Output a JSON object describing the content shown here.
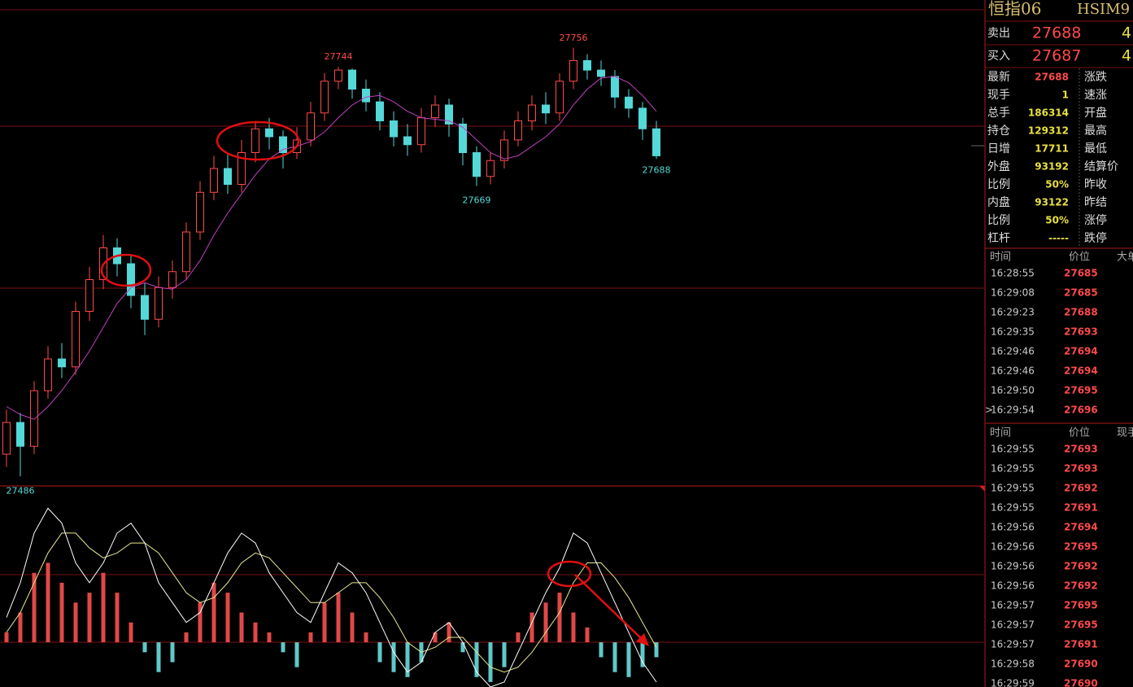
{
  "chart_data": [
    {
      "type": "candlestick",
      "open": [
        27500,
        27520,
        27505,
        27540,
        27560,
        27555,
        27590,
        27610,
        27630,
        27620,
        27600,
        27585,
        27605,
        27615,
        27640,
        27665,
        27680,
        27670,
        27690,
        27705,
        27700,
        27690,
        27698,
        27715,
        27735,
        27742,
        27730,
        27722,
        27710,
        27700,
        27695,
        27712,
        27720,
        27708,
        27690,
        27675,
        27685,
        27698,
        27710,
        27720,
        27715,
        27735,
        27748,
        27742,
        27738,
        27725,
        27718,
        27705
      ],
      "high": [
        27528,
        27526,
        27546,
        27568,
        27570,
        27596,
        27618,
        27638,
        27636,
        27626,
        27608,
        27612,
        27622,
        27646,
        27672,
        27688,
        27690,
        27698,
        27710,
        27712,
        27704,
        27706,
        27722,
        27740,
        27744,
        27743,
        27736,
        27728,
        27716,
        27708,
        27718,
        27726,
        27724,
        27712,
        27694,
        27690,
        27704,
        27716,
        27726,
        27728,
        27740,
        27756,
        27752,
        27748,
        27742,
        27730,
        27722,
        27710
      ],
      "low": [
        27492,
        27486,
        27500,
        27535,
        27548,
        27550,
        27584,
        27604,
        27612,
        27592,
        27575,
        27580,
        27598,
        27610,
        27635,
        27660,
        27664,
        27665,
        27684,
        27692,
        27680,
        27686,
        27694,
        27710,
        27730,
        27724,
        27716,
        27704,
        27694,
        27688,
        27690,
        27706,
        27700,
        27682,
        27669,
        27670,
        27680,
        27694,
        27704,
        27708,
        27710,
        27730,
        27736,
        27732,
        27718,
        27712,
        27698,
        27686
      ],
      "close": [
        27520,
        27505,
        27540,
        27560,
        27555,
        27590,
        27610,
        27630,
        27620,
        27600,
        27585,
        27605,
        27615,
        27640,
        27665,
        27680,
        27670,
        27690,
        27705,
        27700,
        27690,
        27698,
        27715,
        27735,
        27742,
        27730,
        27722,
        27710,
        27700,
        27695,
        27712,
        27720,
        27708,
        27690,
        27675,
        27685,
        27698,
        27710,
        27720,
        27715,
        27735,
        27748,
        27742,
        27738,
        27725,
        27718,
        27705,
        27688
      ],
      "up_color": "#ff4a4a",
      "down_color": "#54d8d8",
      "ma": {
        "color": "#c040c0",
        "values": [
          27530,
          27525,
          27522,
          27530,
          27540,
          27552,
          27565,
          27580,
          27595,
          27605,
          27608,
          27605,
          27604,
          27610,
          27622,
          27638,
          27652,
          27664,
          27676,
          27686,
          27692,
          27694,
          27697,
          27703,
          27712,
          27720,
          27725,
          27726,
          27722,
          27716,
          27712,
          27711,
          27710,
          27706,
          27698,
          27690,
          27686,
          27688,
          27694,
          27700,
          27708,
          27720,
          27730,
          27737,
          27738,
          27734,
          27726,
          27716
        ]
      },
      "ylim": [
        27480,
        27780
      ]
    },
    {
      "type": "macd",
      "hist": [
        2,
        6,
        14,
        16,
        12,
        8,
        10,
        14,
        10,
        4,
        -2,
        -6,
        -4,
        2,
        8,
        12,
        10,
        6,
        4,
        2,
        -2,
        -5,
        2,
        8,
        10,
        6,
        2,
        -4,
        -6,
        -7,
        -4,
        2,
        4,
        -2,
        -7,
        -8,
        -5,
        2,
        6,
        8,
        10,
        6,
        3,
        -3,
        -6,
        -7,
        -5,
        -3
      ],
      "dif": {
        "color": "#ffffff",
        "values": [
          5,
          12,
          22,
          27,
          24,
          16,
          12,
          16,
          22,
          24,
          20,
          12,
          8,
          4,
          6,
          12,
          18,
          22,
          20,
          14,
          10,
          6,
          4,
          10,
          16,
          14,
          10,
          4,
          -2,
          -6,
          -4,
          2,
          4,
          0,
          -6,
          -9,
          -8,
          -2,
          4,
          10,
          15,
          22,
          20,
          14,
          8,
          2,
          -4,
          -8
        ]
      },
      "dea": {
        "color": "#e8e890",
        "values": [
          2,
          6,
          12,
          18,
          22,
          22,
          19,
          17,
          18,
          20,
          20,
          18,
          14,
          10,
          8,
          9,
          12,
          16,
          18,
          17,
          14,
          11,
          8,
          8,
          10,
          12,
          12,
          9,
          5,
          0,
          -2,
          -1,
          1,
          1,
          -2,
          -5,
          -6,
          -5,
          -2,
          2,
          6,
          12,
          16,
          16,
          13,
          9,
          4,
          -1
        ]
      },
      "up_color": "#e04848",
      "down_color": "#5fc8c8",
      "ylim": [
        -9,
        31
      ]
    }
  ],
  "quote": {
    "name": "恒指06",
    "code": "HSIM9",
    "ask": {
      "label": "卖出",
      "price": "27688",
      "volume": "4"
    },
    "bid": {
      "label": "买入",
      "price": "27687",
      "volume": "4"
    },
    "rows": [
      {
        "label": "最新",
        "value": "27688",
        "label2": "涨跌"
      },
      {
        "label": "现手",
        "value": "1",
        "label2": "速涨"
      },
      {
        "label": "总手",
        "value": "186314",
        "label2": "开盘"
      },
      {
        "label": "持仓",
        "value": "129312",
        "label2": "最高"
      },
      {
        "label": "日增",
        "value": "17711",
        "label2": "最低"
      },
      {
        "label": "外盘",
        "value": "93192",
        "label2": "结算价"
      },
      {
        "label": "比例",
        "value": "50%",
        "label2": "昨收"
      },
      {
        "label": "内盘",
        "value": "93122",
        "label2": "昨结"
      },
      {
        "label": "比例",
        "value": "50%",
        "label2": "涨停"
      },
      {
        "label": "杠杆",
        "value": "-----",
        "label2": "跌停"
      }
    ]
  },
  "ticks1": {
    "headers": [
      "时间",
      "价位",
      "大单"
    ],
    "rows": [
      [
        "16:28:55",
        "27685"
      ],
      [
        "16:29:08",
        "27685"
      ],
      [
        "16:29:23",
        "27688"
      ],
      [
        "16:29:35",
        "27693"
      ],
      [
        "16:29:46",
        "27694"
      ],
      [
        "16:29:46",
        "27694"
      ],
      [
        "16:29:50",
        "27695"
      ],
      [
        "16:29:54",
        "27696"
      ]
    ]
  },
  "ticks2": {
    "headers": [
      "时间",
      "价位",
      "现手"
    ],
    "rows": [
      [
        "16:29:55",
        "27693"
      ],
      [
        "16:29:55",
        "27693"
      ],
      [
        "16:29:55",
        "27692"
      ],
      [
        "16:29:55",
        "27691"
      ],
      [
        "16:29:56",
        "27694"
      ],
      [
        "16:29:56",
        "27695"
      ],
      [
        "16:29:56",
        "27692"
      ],
      [
        "16:29:56",
        "27692"
      ],
      [
        "16:29:57",
        "27695"
      ],
      [
        "16:29:57",
        "27695"
      ],
      [
        "16:29:57",
        "27691"
      ],
      [
        "16:29:58",
        "27690"
      ],
      [
        "16:29:59",
        "27690"
      ]
    ]
  }
}
